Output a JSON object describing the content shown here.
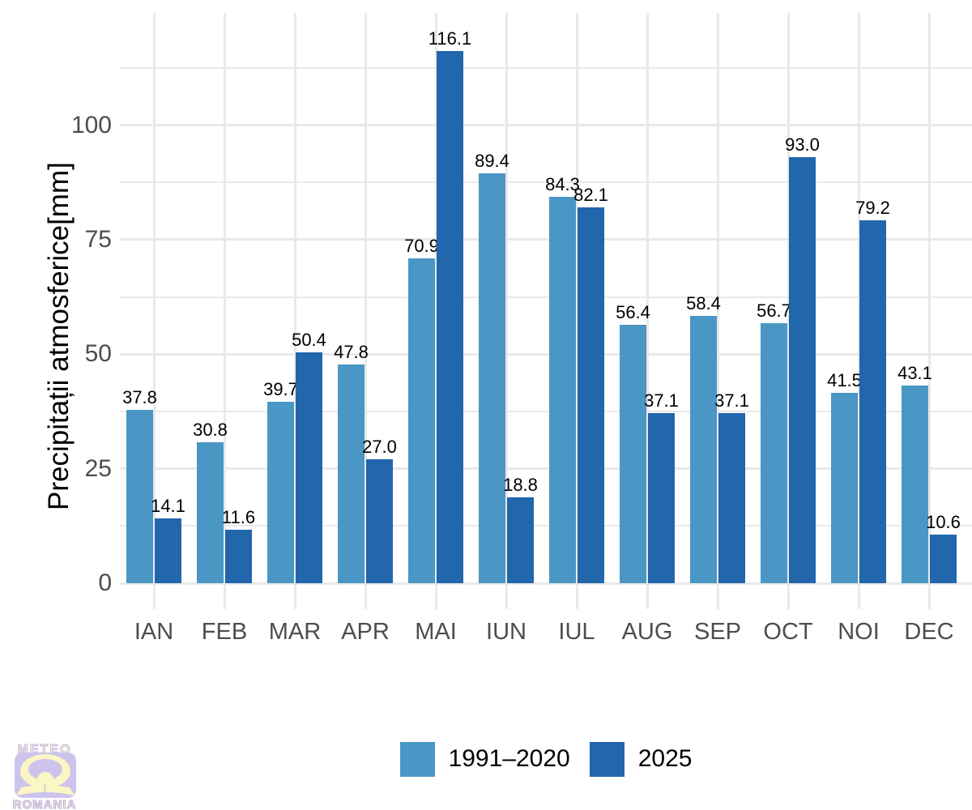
{
  "chart_data": {
    "type": "bar",
    "categories": [
      "IAN",
      "FEB",
      "MAR",
      "APR",
      "MAI",
      "IUN",
      "IUL",
      "AUG",
      "SEP",
      "OCT",
      "NOI",
      "DEC"
    ],
    "series": [
      {
        "name": "1991–2020",
        "color": "#4a97c5",
        "values": [
          37.8,
          30.8,
          39.7,
          47.8,
          70.9,
          89.4,
          84.3,
          56.4,
          58.4,
          56.7,
          41.5,
          43.1
        ]
      },
      {
        "name": "2025",
        "color": "#2266ac",
        "values": [
          14.1,
          11.6,
          50.4,
          27.0,
          116.1,
          18.8,
          82.1,
          37.1,
          37.1,
          93.0,
          79.2,
          10.6
        ]
      }
    ],
    "ylabel": "Precipitații atmosferice[mm]",
    "yticks": [
      0,
      25,
      50,
      75,
      100
    ],
    "yminor": [
      12.5,
      37.5,
      62.5,
      87.5,
      112.5
    ],
    "ylim": [
      0,
      125
    ],
    "grid": true,
    "value_labels": true,
    "legend_position": "bottom",
    "colors": {
      "axis_text": "#4d4d4d",
      "value_text": "#000000",
      "gridline": "#e9e9e9",
      "background": "#ffffff"
    }
  },
  "logo": {
    "top_text": "METEO",
    "bottom_text": "ROMANIA"
  }
}
